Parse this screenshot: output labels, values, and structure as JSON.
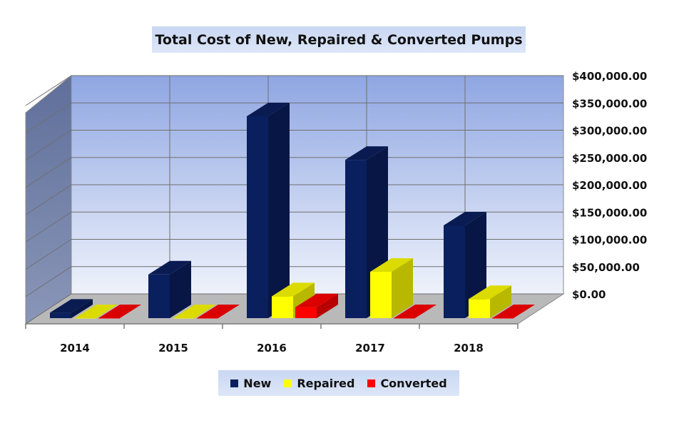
{
  "chart_data": {
    "type": "bar",
    "variant": "3d-clustered-column",
    "title": "Total Cost of New, Repaired & Converted Pumps",
    "categories": [
      "2014",
      "2015",
      "2016",
      "2017",
      "2018"
    ],
    "series": [
      {
        "name": "New",
        "color": "#0a1f5e",
        "values": [
          10000,
          80000,
          370000,
          290000,
          170000
        ]
      },
      {
        "name": "Repaired",
        "color": "#ffff00",
        "values": [
          0,
          0,
          40000,
          85000,
          35000
        ]
      },
      {
        "name": "Converted",
        "color": "#ff0000",
        "values": [
          0,
          0,
          20000,
          0,
          0
        ]
      }
    ],
    "y_ticks": [
      "$0.00",
      "$50,000.00",
      "$100,000.00",
      "$150,000.00",
      "$200,000.00",
      "$250,000.00",
      "$300,000.00",
      "$350,000.00",
      "$400,000.00"
    ],
    "ylim": [
      0,
      400000
    ],
    "grid": true,
    "legend_position": "bottom"
  }
}
